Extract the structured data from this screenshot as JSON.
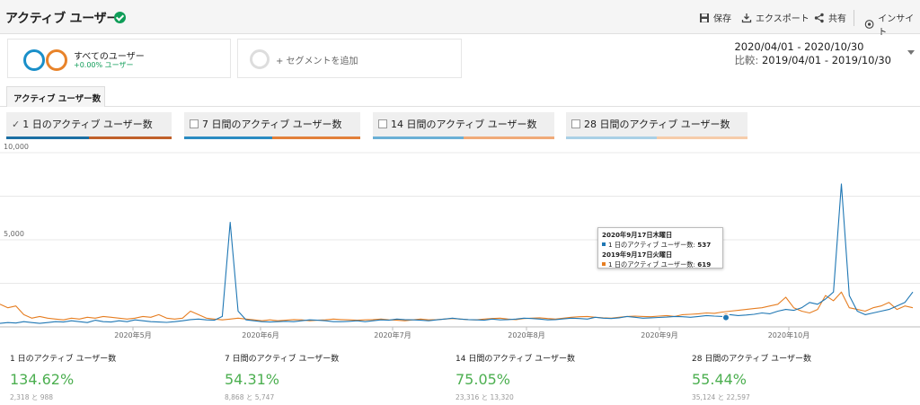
{
  "header": {
    "title": "アクティブ ユーザー",
    "buttons": [
      {
        "label": "保存",
        "icon": "save-icon"
      },
      {
        "label": "エクスポート",
        "icon": "download-icon"
      },
      {
        "label": "共有",
        "icon": "share-icon"
      },
      {
        "label": "インサイト",
        "icon": "insights-icon"
      }
    ]
  },
  "segments": {
    "current": {
      "name": "すべてのユーザー",
      "sub": "+0.00% ユーザー"
    },
    "add_label": "+ セグメントを追加"
  },
  "daterange": {
    "primary": "2020/04/01 - 2020/10/30",
    "compare_prefix": "比較:",
    "compare": "2019/04/01 - 2019/10/30"
  },
  "tab": {
    "label": "アクティブ ユーザー数"
  },
  "metrics": [
    {
      "label": "1 日のアクティブ ユーザー数",
      "checked": true
    },
    {
      "label": "7 日間のアクティブ ユーザー数",
      "checked": false
    },
    {
      "label": "14 日間のアクティブ ユーザー数",
      "checked": false
    },
    {
      "label": "28 日間のアクティブ ユーザー数",
      "checked": false
    }
  ],
  "colors": {
    "current": "#1f77b4",
    "compare": "#e67e22",
    "accent_green": "#4caf50"
  },
  "chart_data": {
    "type": "line",
    "ylim": [
      0,
      10000
    ],
    "y_ticks": [
      "10,000",
      "5,000"
    ],
    "y_tick_values": [
      10000,
      5000
    ],
    "x_ticks": [
      "2020年5月",
      "2020年6月",
      "2020年7月",
      "2020年8月",
      "2020年9月",
      "2020年10月"
    ],
    "series": [
      {
        "color": "#1f77b4",
        "values": [
          200,
          250,
          220,
          300,
          250,
          200,
          250,
          300,
          280,
          350,
          300,
          250,
          380,
          300,
          280,
          350,
          300,
          400,
          350,
          300,
          280,
          260,
          300,
          350,
          420,
          450,
          400,
          380,
          600,
          6000,
          900,
          400,
          350,
          300,
          280,
          300,
          320,
          300,
          350,
          400,
          380,
          350,
          300,
          300,
          320,
          350,
          300,
          350,
          400,
          380,
          450,
          420,
          400,
          380,
          350,
          400,
          450,
          500,
          450,
          420,
          400,
          380,
          450,
          400,
          420,
          450,
          500,
          480,
          450,
          400,
          420,
          460,
          500,
          480,
          450,
          550,
          500,
          480,
          520,
          600,
          550,
          500,
          520,
          540,
          560,
          600,
          580,
          550,
          600,
          650,
          620,
          600,
          700,
          650,
          680,
          720,
          800,
          750,
          900,
          1000,
          950,
          1100,
          1400,
          1300,
          1600,
          2000,
          8200,
          1800,
          900,
          700,
          800,
          900,
          1000,
          1200,
          1400,
          2000
        ]
      },
      {
        "color": "#e67e22",
        "values": [
          1300,
          1100,
          1200,
          700,
          500,
          600,
          500,
          450,
          400,
          500,
          450,
          550,
          500,
          600,
          550,
          500,
          450,
          500,
          600,
          550,
          700,
          500,
          450,
          500,
          900,
          700,
          500,
          450,
          400,
          450,
          500,
          450,
          400,
          350,
          400,
          350,
          380,
          420,
          400,
          350,
          380,
          400,
          450,
          420,
          400,
          380,
          400,
          420,
          450,
          400,
          380,
          350,
          400,
          450,
          400,
          420,
          450,
          480,
          450,
          420,
          400,
          450,
          480,
          500,
          450,
          420,
          480,
          500,
          520,
          480,
          450,
          500,
          550,
          580,
          600,
          550,
          520,
          500,
          550,
          600,
          620,
          600,
          580,
          620,
          650,
          600,
          700,
          720,
          750,
          800,
          780,
          850,
          900,
          950,
          1000,
          1050,
          1100,
          1200,
          1300,
          1700,
          1100,
          900,
          800,
          1000,
          1800,
          1500,
          2000,
          1100,
          1000,
          900,
          1100,
          1200,
          1400,
          1000,
          1200,
          1100
        ]
      }
    ],
    "tooltip": {
      "date1": "2020年9月17日木曜日",
      "row1_label": "1 日のアクティブ ユーザー数:",
      "row1_value": "537",
      "date2": "2019年9月17日火曜日",
      "row2_label": "1 日のアクティブ ユーザー数:",
      "row2_value": "619"
    }
  },
  "summary": [
    {
      "label": "1 日のアクティブ ユーザー数",
      "value": "134.62%",
      "sub": "2,318 と 988"
    },
    {
      "label": "7 日間のアクティブ ユーザー数",
      "value": "54.31%",
      "sub": "8,868 と 5,747"
    },
    {
      "label": "14 日間のアクティブ ユーザー数",
      "value": "75.05%",
      "sub": "23,316 と 13,320"
    },
    {
      "label": "28 日間のアクティブ ユーザー数",
      "value": "55.44%",
      "sub": "35,124 と 22,597"
    }
  ]
}
